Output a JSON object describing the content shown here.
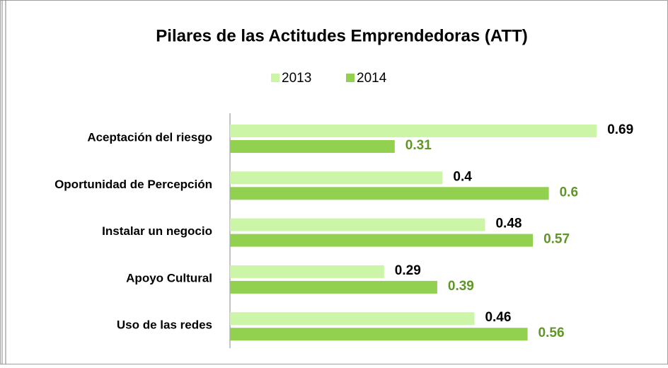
{
  "chart_data": {
    "type": "bar",
    "orientation": "horizontal",
    "title": "Pilares de las Actitudes Emprendedoras (ATT)",
    "categories": [
      "Aceptación del riesgo",
      "Oportunidad de Percepción",
      "Instalar un negocio",
      "Apoyo Cultural",
      "Uso de las redes"
    ],
    "series": [
      {
        "name": "2013",
        "color": "#ccf5a8",
        "label_color": "#000000",
        "values": [
          0.69,
          0.4,
          0.48,
          0.29,
          0.46
        ]
      },
      {
        "name": "2014",
        "color": "#92d050",
        "label_color": "#5f9626",
        "values": [
          0.31,
          0.6,
          0.57,
          0.39,
          0.56
        ]
      }
    ],
    "xlim": [
      0,
      0.8
    ],
    "legend": "top",
    "grid": false
  }
}
